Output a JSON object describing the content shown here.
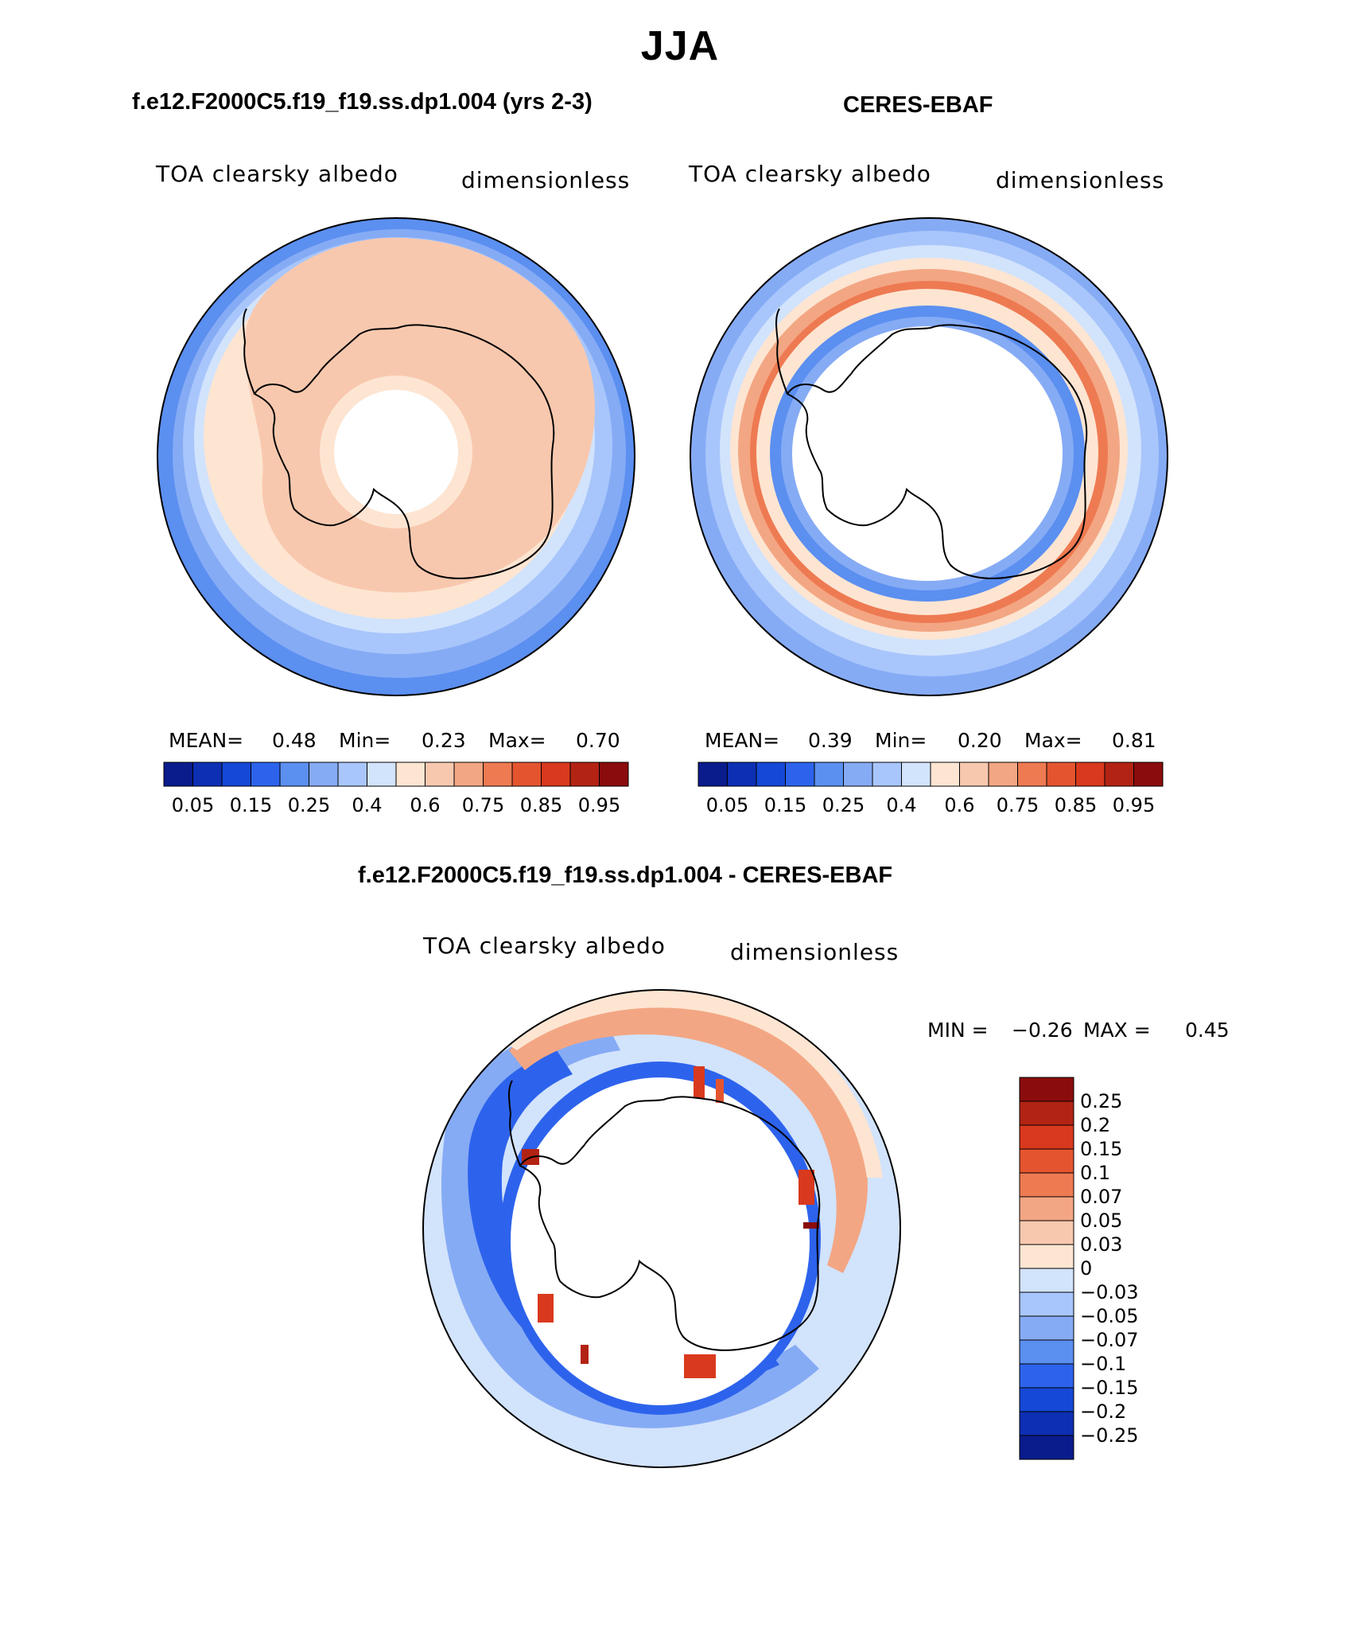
{
  "title": "JJA",
  "colors": {
    "background": "#ffffff",
    "coastline": "#000000",
    "ocean_blue": "#5b8ff0",
    "deep_blue": "#3a6ee8",
    "light_blue": "#a8c6fb",
    "pale_peach": "#fde5d2",
    "peach": "#f8c8ae",
    "red": "#d9482b",
    "dark_red": "#8b0c0c"
  },
  "panels": [
    {
      "title": "f.e12.F2000C5.f19_f19.ss.dp1.004 (yrs 2-3)",
      "variable": "TOA clearsky albedo",
      "units": "dimensionless",
      "stats": {
        "mean_label": "MEAN=",
        "mean": "0.48",
        "min_label": "Min=",
        "min": "0.23",
        "max_label": "Max=",
        "max": "0.70"
      }
    },
    {
      "title": "CERES-EBAF",
      "variable": "TOA clearsky albedo",
      "units": "dimensionless",
      "stats": {
        "mean_label": "MEAN=",
        "mean": "0.39",
        "min_label": "Min=",
        "min": "0.20",
        "max_label": "Max=",
        "max": "0.81"
      }
    }
  ],
  "diff_panel": {
    "title": "f.e12.F2000C5.f19_f19.ss.dp1.004 - CERES-EBAF",
    "variable": "TOA clearsky albedo",
    "units": "dimensionless",
    "min_label": "MIN =",
    "min": "−0.26",
    "max_label": "MAX =",
    "max": "0.45"
  },
  "chart_data": [
    {
      "type": "heatmap",
      "projection": "south-polar-stereographic",
      "title": "f.e12.F2000C5.f19_f19.ss.dp1.004 (yrs 2-3)",
      "variable": "TOA clearsky albedo",
      "units": "dimensionless",
      "mean": 0.48,
      "min": 0.23,
      "max": 0.7,
      "colorbar": {
        "tick_labels": [
          "0.05",
          "0.15",
          "0.25",
          "0.4",
          "0.6",
          "0.75",
          "0.85",
          "0.95"
        ],
        "colors": [
          "#0a1b8c",
          "#0d2fb4",
          "#1548d6",
          "#2d63ec",
          "#5b8ff0",
          "#86abf5",
          "#a8c6fb",
          "#d2e3fc",
          "#fde5d2",
          "#f8c8ae",
          "#f3a683",
          "#ee7a52",
          "#e4552f",
          "#d9391d",
          "#b32313",
          "#8b0c0c"
        ]
      }
    },
    {
      "type": "heatmap",
      "projection": "south-polar-stereographic",
      "title": "CERES-EBAF",
      "variable": "TOA clearsky albedo",
      "units": "dimensionless",
      "mean": 0.39,
      "min": 0.2,
      "max": 0.81,
      "colorbar": {
        "tick_labels": [
          "0.05",
          "0.15",
          "0.25",
          "0.4",
          "0.6",
          "0.75",
          "0.85",
          "0.95"
        ],
        "colors": [
          "#0a1b8c",
          "#0d2fb4",
          "#1548d6",
          "#2d63ec",
          "#5b8ff0",
          "#86abf5",
          "#a8c6fb",
          "#d2e3fc",
          "#fde5d2",
          "#f8c8ae",
          "#f3a683",
          "#ee7a52",
          "#e4552f",
          "#d9391d",
          "#b32313",
          "#8b0c0c"
        ]
      }
    },
    {
      "type": "heatmap",
      "projection": "south-polar-stereographic",
      "title": "f.e12.F2000C5.f19_f19.ss.dp1.004 - CERES-EBAF",
      "variable": "TOA clearsky albedo",
      "units": "dimensionless",
      "min": -0.26,
      "max": 0.45,
      "colorbar": {
        "orientation": "vertical",
        "tick_labels": [
          "0.25",
          "0.2",
          "0.15",
          "0.1",
          "0.07",
          "0.05",
          "0.03",
          "0",
          "−0.03",
          "−0.05",
          "−0.07",
          "−0.1",
          "−0.15",
          "−0.2",
          "−0.25"
        ],
        "colors": [
          "#8b0c0c",
          "#b32313",
          "#d9391d",
          "#e4552f",
          "#ee7a52",
          "#f3a683",
          "#f8c8ae",
          "#fde5d2",
          "#d2e3fc",
          "#a8c6fb",
          "#86abf5",
          "#5b8ff0",
          "#2d63ec",
          "#1548d6",
          "#0d2fb4",
          "#0a1b8c"
        ]
      }
    }
  ]
}
